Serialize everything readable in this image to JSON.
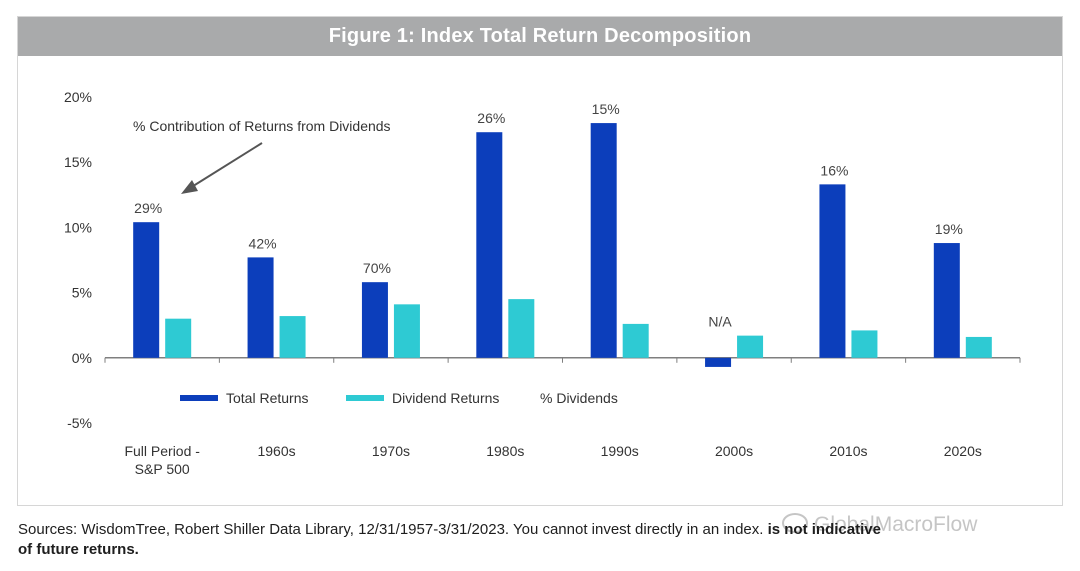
{
  "chart_data": {
    "type": "bar",
    "title": "Figure 1: Index Total Return Decomposition",
    "categories": [
      "Full Period -\nS&P 500",
      "1960s",
      "1970s",
      "1980s",
      "1990s",
      "2000s",
      "2010s",
      "2020s"
    ],
    "series": [
      {
        "name": "Total Returns",
        "color": "#0c3ebb",
        "values": [
          10.4,
          7.7,
          5.8,
          17.3,
          18.0,
          -0.7,
          13.3,
          8.8
        ]
      },
      {
        "name": "Dividend Returns",
        "color": "#2ecad3",
        "values": [
          3.0,
          3.2,
          4.1,
          4.5,
          2.6,
          1.7,
          2.1,
          1.6
        ]
      }
    ],
    "pct_dividends_labels": [
      "29%",
      "42%",
      "70%",
      "26%",
      "15%",
      "N/A",
      "16%",
      "19%"
    ],
    "legend": [
      "Total Returns",
      "Dividend Returns",
      "% Dividends"
    ],
    "ylim": [
      -5,
      20
    ],
    "yticks": [
      -5,
      0,
      5,
      10,
      15,
      20
    ],
    "ytick_labels": [
      "-5%",
      "0%",
      "5%",
      "10%",
      "15%",
      "20%"
    ],
    "annotation": "% Contribution of Returns from Dividends",
    "grid": false,
    "xlabel": "",
    "ylabel": ""
  },
  "footer": {
    "text_plain": "Sources: WisdomTree, Robert Shiller Data Library, 12/31/1957-3/31/2023. You cannot invest directly in an index.",
    "text_bold_tail": " is not indicative",
    "text_bold_line2": "of future returns."
  },
  "watermark": "GlobalMacroFlow"
}
